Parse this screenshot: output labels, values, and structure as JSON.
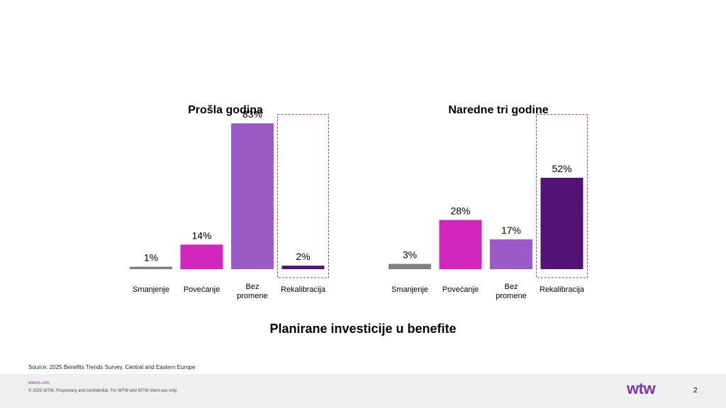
{
  "chart_data": [
    {
      "type": "bar",
      "title": "Prošla godina",
      "categories": [
        "Smanjenje",
        "Povećanje",
        "Bez promene",
        "Rekalibracija"
      ],
      "values": [
        1,
        14,
        83,
        2
      ],
      "labels": [
        "1%",
        "14%",
        "83%",
        "2%"
      ],
      "highlight_category": "Rekalibracija",
      "ylim": [
        0,
        100
      ]
    },
    {
      "type": "bar",
      "title": "Naredne tri godine",
      "categories": [
        "Smanjenje",
        "Povećanje",
        "Bez promene",
        "Rekalibracija"
      ],
      "values": [
        3,
        28,
        17,
        52
      ],
      "labels": [
        "3%",
        "28%",
        "17%",
        "52%"
      ],
      "highlight_category": "Rekalibracija",
      "ylim": [
        0,
        100
      ]
    }
  ],
  "colors": {
    "Smanjenje": "#7f7f7f",
    "Povećanje": "#d226bd",
    "Bez promene": "#9b5bc6",
    "Rekalibracija": "#521276",
    "highlight_border": "#7f35b2"
  },
  "main_title": "Planirane investicije u benefite",
  "source": "Source: 2025 Benefits Trends Survey, Central and Eastern Europe",
  "footer": {
    "url": "wtwco.com",
    "copyright": "© 2025 WTW. Proprietary and confidential. For WTW and WTW client use only.",
    "logo": "wtw",
    "page_number": "2"
  }
}
